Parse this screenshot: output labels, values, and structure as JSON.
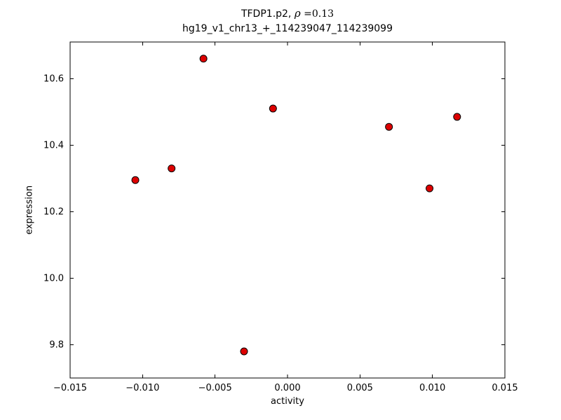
{
  "figure": {
    "title_prefix": "TFDP1.p2, ",
    "title_rho": "ρ",
    "title_rho_rest": " =0.13",
    "subtitle": "hg19_v1_chr13_+_114239047_114239099",
    "xlabel": "activity",
    "ylabel": "expression"
  },
  "chart_data": {
    "type": "scatter",
    "title": "TFDP1.p2, ρ =0.13",
    "subtitle": "hg19_v1_chr13_+_114239047_114239099",
    "xlabel": "activity",
    "ylabel": "expression",
    "xlim": [
      -0.015,
      0.015
    ],
    "ylim": [
      9.7,
      10.71
    ],
    "xticks": [
      -0.015,
      -0.01,
      -0.005,
      0,
      0.005,
      0.01,
      0.015
    ],
    "xtick_labels": [
      "−0.015",
      "−0.010",
      "−0.005",
      "0.000",
      "0.005",
      "0.010",
      "0.015"
    ],
    "yticks": [
      9.8,
      10.0,
      10.2,
      10.4,
      10.6
    ],
    "ytick_labels": [
      "9.8",
      "10.0",
      "10.2",
      "10.4",
      "10.6"
    ],
    "grid": false,
    "legend": false,
    "marker": {
      "shape": "circle",
      "face_color": "#dd0000",
      "edge_color": "#000000",
      "radius_px": 5
    },
    "points": [
      {
        "x": -0.0105,
        "y": 10.295
      },
      {
        "x": -0.008,
        "y": 10.33
      },
      {
        "x": -0.0058,
        "y": 10.66
      },
      {
        "x": -0.003,
        "y": 9.78
      },
      {
        "x": -0.001,
        "y": 10.51
      },
      {
        "x": 0.007,
        "y": 10.455
      },
      {
        "x": 0.0098,
        "y": 10.27
      },
      {
        "x": 0.0117,
        "y": 10.485
      }
    ]
  }
}
